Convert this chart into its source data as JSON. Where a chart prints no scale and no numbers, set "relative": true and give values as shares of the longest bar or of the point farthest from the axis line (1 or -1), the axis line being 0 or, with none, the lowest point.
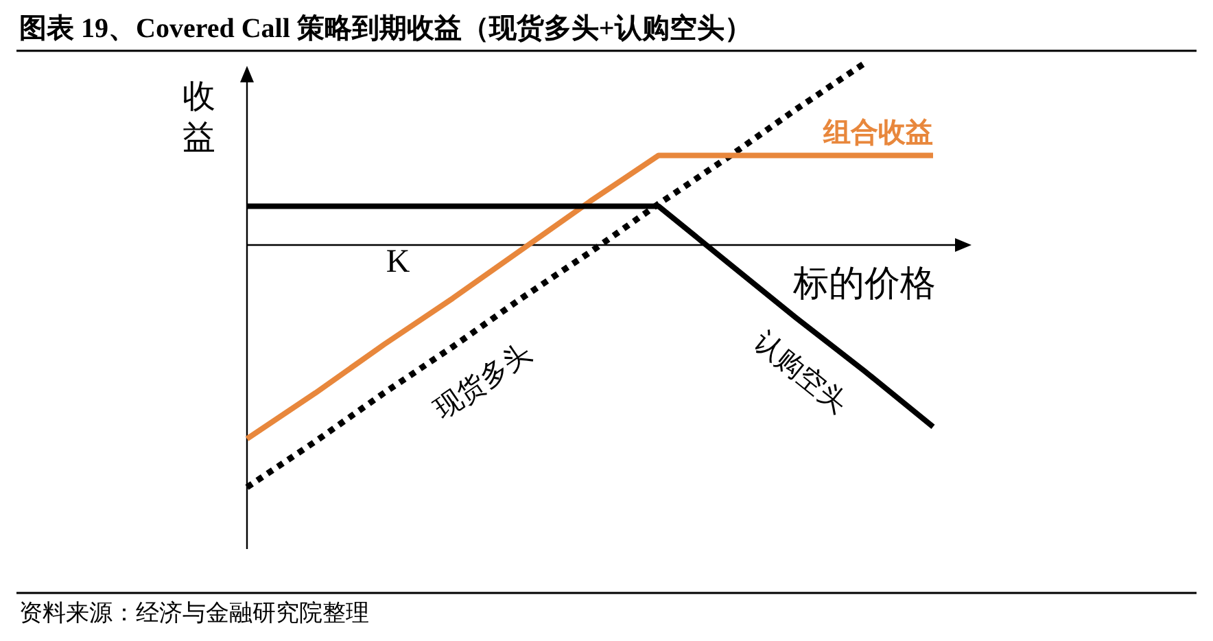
{
  "chart_data": {
    "type": "line",
    "relative": true,
    "title": "图表 19、Covered Call 策略到期收益（现货多头+认购空头）",
    "ylabel": "收益",
    "xlabel": "标的价格",
    "legend": false,
    "grid": false,
    "marker": "none",
    "categories": [
      null,
      null,
      null,
      null,
      null,
      null,
      null,
      null,
      null,
      null,
      null
    ],
    "series": [
      {
        "name": "现货多头",
        "color": "#000000",
        "line_style": "dotted",
        "values": [
          -1,
          -0.81,
          -0.61,
          -0.42,
          -0.22,
          -0.03,
          0.17,
          0.36,
          0.56,
          0.75,
          null
        ]
      },
      {
        "name": "组合收益",
        "color": "#e8873c",
        "line_style": "solid",
        "values": [
          -0.8,
          -0.61,
          -0.41,
          -0.22,
          -0.02,
          0.18,
          0.37,
          0.37,
          0.37,
          0.37,
          0.37
        ]
      },
      {
        "name": "认购空头",
        "color": "#000000",
        "line_style": "solid",
        "values": [
          0.16,
          0.16,
          0.16,
          0.16,
          0.16,
          0.16,
          0.16,
          -0.07,
          -0.3,
          -0.52,
          -0.75
        ]
      }
    ],
    "annotations": [
      "K",
      "资料来源：经济与金融研究院整理"
    ]
  }
}
